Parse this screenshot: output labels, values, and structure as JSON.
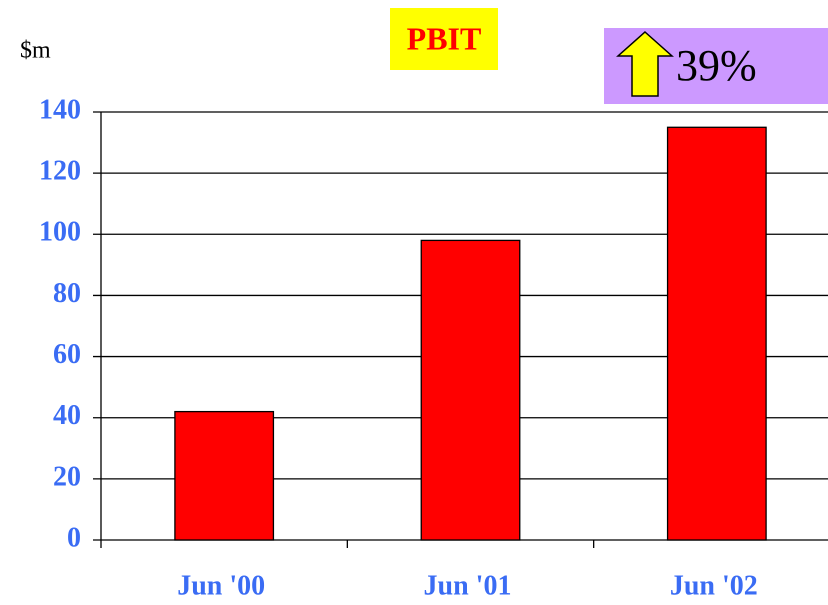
{
  "chart_data": {
    "type": "bar",
    "title": "PBIT",
    "ylabel": "$m",
    "annotation": "39%",
    "categories": [
      "Jun '00",
      "Jun '01",
      "Jun '02"
    ],
    "values": [
      42,
      98,
      135
    ],
    "color": "#ff0000",
    "ylim": [
      0,
      140
    ],
    "yticks": [
      0,
      20,
      40,
      60,
      80,
      100,
      120,
      140
    ],
    "grid": true
  }
}
